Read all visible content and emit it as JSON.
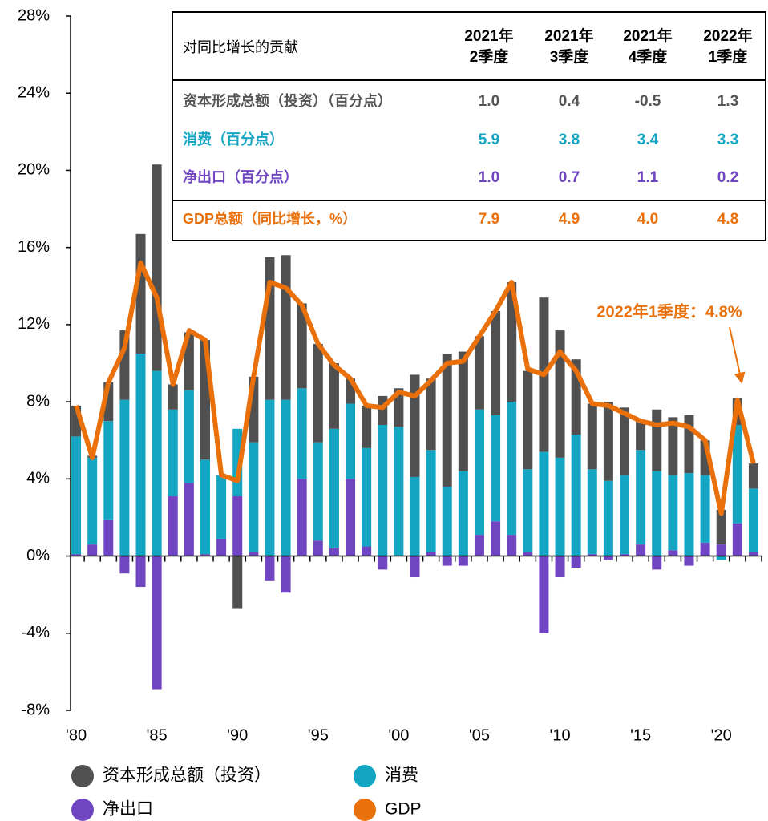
{
  "chart_data": {
    "type": "stacked-bar-line",
    "categories": [
      "'80",
      null,
      null,
      null,
      null,
      "'85",
      null,
      null,
      null,
      null,
      "'90",
      null,
      null,
      null,
      null,
      "'95",
      null,
      null,
      null,
      null,
      "'00",
      null,
      null,
      null,
      null,
      "'05",
      null,
      null,
      null,
      null,
      "'10",
      null,
      null,
      null,
      null,
      "'15",
      null,
      null,
      null,
      null,
      "'20",
      null,
      null
    ],
    "series": [
      {
        "name": "资本形成总额（投资）",
        "color": "#505050",
        "values": [
          1.6,
          0.1,
          2.0,
          3.6,
          6.2,
          10.7,
          1.3,
          3.0,
          6.2,
          0,
          -2.7,
          3.4,
          7.4,
          7.5,
          4.4,
          5.1,
          3.4,
          1.3,
          2.2,
          1.5,
          2.0,
          5.3,
          3.7,
          6.9,
          6.2,
          3.8,
          5.4,
          6.2,
          5.1,
          8.0,
          6.6,
          3.9,
          3.4,
          4.1,
          3.5,
          1.5,
          3.2,
          3.0,
          3.0,
          1.8,
          1.8,
          1.4,
          1.3
        ]
      },
      {
        "name": "消费",
        "color": "#13a5c2",
        "values": [
          6.1,
          4.5,
          5.1,
          8.1,
          10.5,
          9.6,
          4.5,
          4.8,
          4.9,
          3.3,
          3.5,
          5.7,
          8.1,
          8.1,
          4.7,
          5.1,
          6.2,
          3.9,
          5.1,
          6.8,
          6.7,
          4.1,
          5.3,
          3.6,
          4.4,
          6.5,
          5.5,
          6.9,
          4.3,
          5.4,
          5.1,
          6.3,
          4.4,
          3.9,
          4.1,
          4.9,
          4.4,
          3.9,
          4.3,
          3.5,
          -0.2,
          5.1,
          3.3
        ]
      },
      {
        "name": "净出口",
        "color": "#7045c2",
        "values": [
          0.1,
          0.6,
          1.9,
          -0.9,
          -1.6,
          -6.9,
          3.1,
          3.8,
          0.1,
          0.9,
          3.1,
          0.2,
          -1.3,
          -1.9,
          4.0,
          0.8,
          0.4,
          4.0,
          0.5,
          -0.7,
          0,
          -1.1,
          0.2,
          -0.5,
          -0.5,
          1.1,
          1.8,
          1.1,
          0.2,
          -4.0,
          -1.1,
          -0.6,
          0.1,
          -0.2,
          0.1,
          0.6,
          -0.7,
          0.3,
          -0.5,
          0.7,
          0.6,
          1.7,
          0.2
        ]
      },
      {
        "name": "GDP",
        "color": "#ea700b",
        "type": "line",
        "values": [
          7.8,
          5.1,
          9.0,
          10.8,
          15.2,
          13.4,
          8.9,
          11.7,
          11.2,
          4.2,
          3.9,
          9.3,
          14.2,
          13.9,
          13.0,
          11.0,
          9.9,
          9.2,
          7.8,
          7.7,
          8.5,
          8.3,
          9.1,
          10.0,
          10.1,
          11.4,
          12.7,
          14.2,
          9.7,
          9.4,
          10.6,
          9.6,
          7.9,
          7.8,
          7.4,
          7.0,
          6.8,
          6.9,
          6.7,
          6.0,
          2.2,
          8.1,
          4.8
        ]
      }
    ],
    "ylim": [
      -8,
      28
    ],
    "yticks": [
      {
        "value": -8,
        "label": "-8%"
      },
      {
        "value": -4,
        "label": "-4%"
      },
      {
        "value": 0,
        "label": "0%"
      },
      {
        "value": 4,
        "label": "4%"
      },
      {
        "value": 8,
        "label": "8%"
      },
      {
        "value": 12,
        "label": "12%"
      },
      {
        "value": 16,
        "label": "16%"
      },
      {
        "value": 20,
        "label": "20%"
      },
      {
        "value": 24,
        "label": "24%"
      },
      {
        "value": 28,
        "label": "28%"
      }
    ],
    "annotation": "2022年1季度：4.8%",
    "legend": "bottom"
  },
  "table": {
    "header": "对同比增长的贡献",
    "columns": [
      [
        "2021年",
        "2季度"
      ],
      [
        "2021年",
        "3季度"
      ],
      [
        "2021年",
        "4季度"
      ],
      [
        "2022年",
        "1季度"
      ]
    ],
    "rows": [
      {
        "label": "资本形成总额（投资）（百分点）",
        "color": "#555555",
        "values": [
          "1.0",
          "0.4",
          "-0.5",
          "1.3"
        ]
      },
      {
        "label": "消费（百分点）",
        "color": "#13a5c2",
        "values": [
          "5.9",
          "3.8",
          "3.4",
          "3.3"
        ]
      },
      {
        "label": "净出口（百分点）",
        "color": "#7045c2",
        "values": [
          "1.0",
          "0.7",
          "1.1",
          "0.2"
        ]
      },
      {
        "label": "GDP总额（同比增长，%）",
        "color": "#ea700b",
        "values": [
          "7.9",
          "4.9",
          "4.0",
          "4.8"
        ]
      }
    ]
  }
}
